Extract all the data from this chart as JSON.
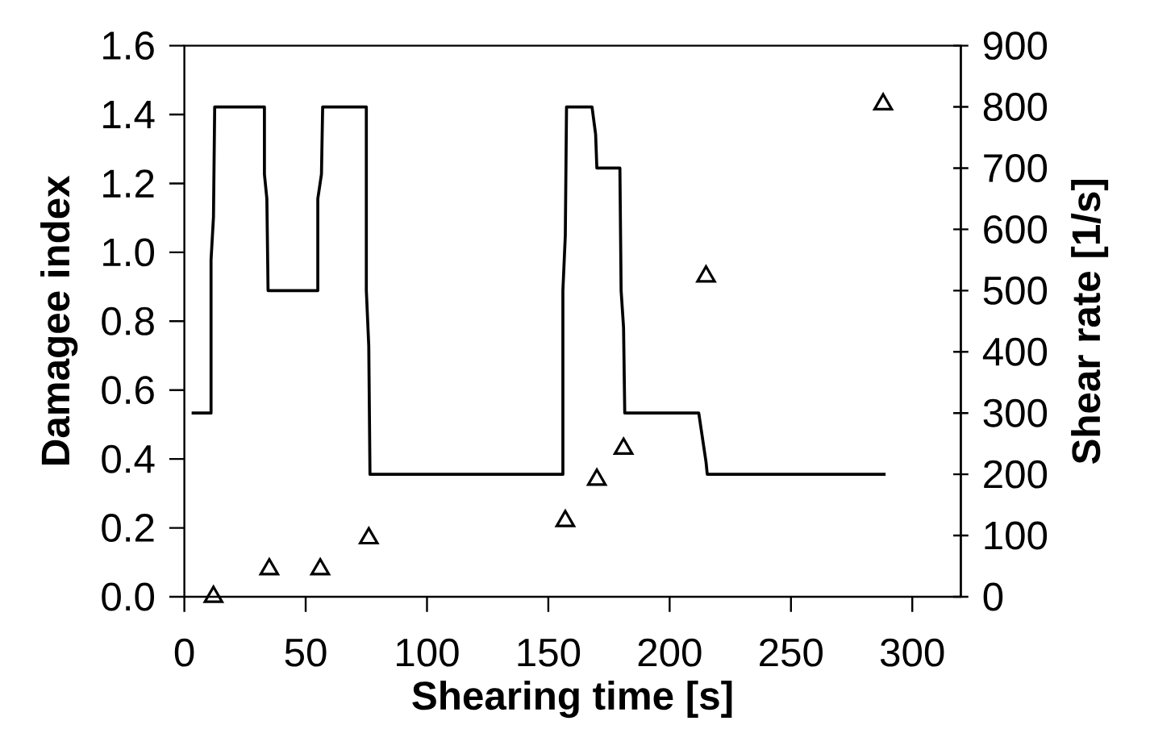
{
  "chart_data": {
    "type": "scatter",
    "xlabel": "Shearing time [s]",
    "ylabel": "Damagee index",
    "y2label": "Shear rate [1/s]",
    "xlim": [
      0,
      320
    ],
    "xticks": [
      0,
      50,
      100,
      150,
      200,
      250,
      300
    ],
    "ylim": [
      0,
      1.6
    ],
    "yticks": [
      {
        "value": 0,
        "label": "0.0"
      },
      0.2,
      0.4,
      0.6,
      0.8,
      {
        "value": 1,
        "label": "1.0"
      },
      1.2,
      1.4,
      1.6
    ],
    "y2lim": [
      0,
      900
    ],
    "y2ticks": [
      0,
      100,
      200,
      300,
      400,
      500,
      600,
      700,
      800,
      900
    ],
    "grid": false,
    "series": [
      {
        "color": "#000000",
        "marker": "triangle",
        "x": [
          12,
          35,
          56,
          76,
          157,
          170,
          181,
          215,
          288
        ],
        "values": [
          0.0,
          0.08,
          0.08,
          0.17,
          0.22,
          0.34,
          0.43,
          0.93,
          1.43
        ]
      },
      {
        "type": "line",
        "axis": "y2",
        "color": "#000000",
        "marker": "none",
        "line_style": "solid",
        "x": [
          3,
          11,
          11,
          12,
          12.5,
          33,
          33,
          34,
          34.5,
          55,
          55,
          56.5,
          57,
          75,
          75,
          76,
          76.5,
          156,
          156,
          157,
          157.5,
          168,
          169.5,
          170,
          179.5,
          180,
          181,
          181.5,
          212,
          215,
          215.5,
          289
        ],
        "values": [
          300,
          300,
          550,
          620,
          800,
          800,
          690,
          650,
          500,
          500,
          650,
          690,
          800,
          800,
          500,
          410,
          200,
          200,
          500,
          590,
          800,
          800,
          755,
          700,
          700,
          500,
          440,
          300,
          300,
          220,
          200,
          200
        ]
      }
    ]
  }
}
